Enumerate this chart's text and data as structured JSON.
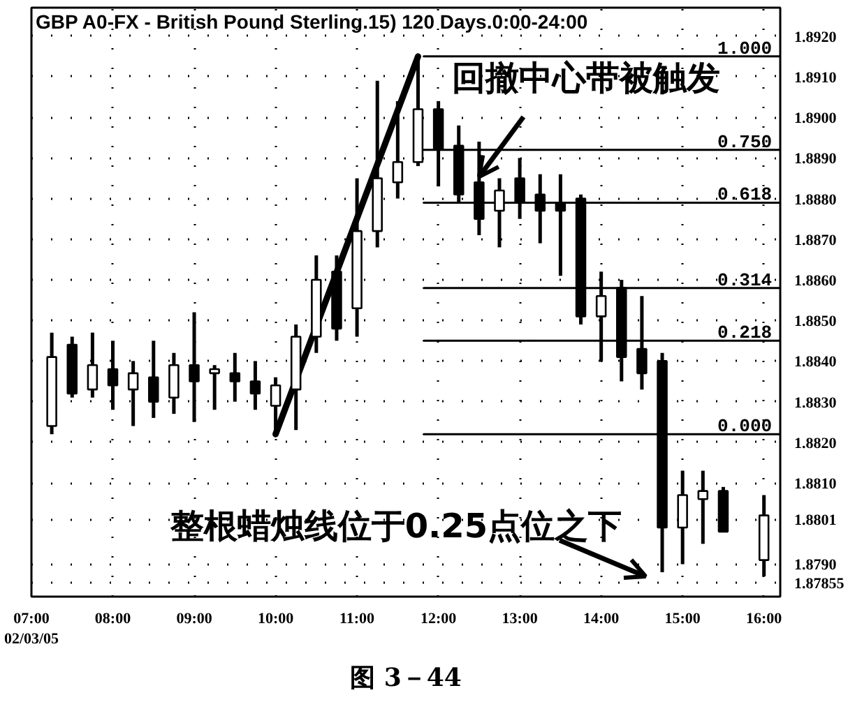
{
  "chart_data": {
    "type": "candlestick",
    "title": "GBP A0-FX - British Pound Sterling.15) 120 Days.0:00-24:00",
    "color": "#000000",
    "x": [
      7.25,
      7.5,
      7.75,
      8.0,
      8.25,
      8.5,
      8.75,
      9.0,
      9.25,
      9.5,
      9.75,
      10.0,
      10.25,
      10.5,
      10.75,
      11.0,
      11.25,
      11.5,
      11.75,
      12.0,
      12.25,
      12.5,
      12.75,
      13.0,
      13.25,
      13.5,
      13.75,
      14.0,
      14.25,
      14.5,
      14.75,
      15.0,
      15.25,
      15.5,
      16.0
    ],
    "ohlc": [
      [
        1.8824,
        1.8847,
        1.8822,
        1.8841
      ],
      [
        1.8844,
        1.8846,
        1.8831,
        1.8832
      ],
      [
        1.8833,
        1.8847,
        1.8831,
        1.8839
      ],
      [
        1.8838,
        1.8845,
        1.8828,
        1.8834
      ],
      [
        1.8833,
        1.884,
        1.8824,
        1.8837
      ],
      [
        1.8836,
        1.8845,
        1.8826,
        1.883
      ],
      [
        1.8831,
        1.8842,
        1.8827,
        1.8839
      ],
      [
        1.8839,
        1.8852,
        1.8825,
        1.8835
      ],
      [
        1.8837,
        1.8839,
        1.8828,
        1.8838
      ],
      [
        1.8837,
        1.8842,
        1.883,
        1.8835
      ],
      [
        1.8835,
        1.884,
        1.8828,
        1.8832
      ],
      [
        1.8829,
        1.8836,
        1.8822,
        1.8834
      ],
      [
        1.8833,
        1.8849,
        1.8823,
        1.8846
      ],
      [
        1.8846,
        1.8866,
        1.8842,
        1.886
      ],
      [
        1.8862,
        1.8866,
        1.8845,
        1.8848
      ],
      [
        1.8853,
        1.8885,
        1.8846,
        1.8872
      ],
      [
        1.8872,
        1.8909,
        1.8868,
        1.8885
      ],
      [
        1.8884,
        1.8904,
        1.888,
        1.8889
      ],
      [
        1.8889,
        1.8915,
        1.8888,
        1.8902
      ],
      [
        1.8902,
        1.8904,
        1.8883,
        1.8892
      ],
      [
        1.8893,
        1.8898,
        1.8879,
        1.8881
      ],
      [
        1.8884,
        1.8894,
        1.8871,
        1.8875
      ],
      [
        1.8877,
        1.8885,
        1.8868,
        1.8882
      ],
      [
        1.8885,
        1.889,
        1.8875,
        1.8879
      ],
      [
        1.8881,
        1.8886,
        1.8869,
        1.8877
      ],
      [
        1.8879,
        1.8886,
        1.8861,
        1.8877
      ],
      [
        1.888,
        1.8881,
        1.8849,
        1.8851
      ],
      [
        1.8851,
        1.8862,
        1.884,
        1.8856
      ],
      [
        1.8858,
        1.886,
        1.8835,
        1.8841
      ],
      [
        1.8843,
        1.8856,
        1.8833,
        1.8837
      ],
      [
        1.884,
        1.8842,
        1.8788,
        1.8799
      ],
      [
        1.8799,
        1.8813,
        1.879,
        1.8807
      ],
      [
        1.8806,
        1.8813,
        1.8795,
        1.8808
      ],
      [
        1.8808,
        1.8809,
        1.8798,
        1.8798
      ],
      [
        1.8791,
        1.8807,
        1.8787,
        1.8802
      ]
    ],
    "series": [
      {
        "type": "line",
        "x": [
          10.0,
          11.75
        ],
        "values": [
          1.8822,
          1.8915
        ],
        "color": "#000000"
      },
      {
        "type": "line",
        "name": "1.000",
        "x": [
          11.82,
          16.2
        ],
        "values": [
          1.8915,
          1.8915
        ],
        "color": "#000000"
      },
      {
        "type": "line",
        "name": "0.750",
        "x": [
          11.82,
          16.2
        ],
        "values": [
          1.8892,
          1.8892
        ],
        "color": "#000000"
      },
      {
        "type": "line",
        "name": "0.618",
        "x": [
          11.82,
          16.2
        ],
        "values": [
          1.8879,
          1.8879
        ],
        "color": "#000000"
      },
      {
        "type": "line",
        "name": "0.314",
        "x": [
          11.82,
          16.2
        ],
        "values": [
          1.8858,
          1.8858
        ],
        "color": "#000000"
      },
      {
        "type": "line",
        "name": "0.218",
        "x": [
          11.82,
          16.2
        ],
        "values": [
          1.8845,
          1.8845
        ],
        "color": "#000000"
      },
      {
        "type": "line",
        "name": "0.000",
        "x": [
          11.82,
          16.2
        ],
        "values": [
          1.8822,
          1.8822
        ],
        "color": "#000000"
      }
    ],
    "xlim": [
      7.0,
      16.2
    ],
    "xticks": [
      {
        "value": 7,
        "label": "07:00\n02/03/05"
      },
      {
        "value": 8,
        "label": "08:00"
      },
      {
        "value": 9,
        "label": "09:00"
      },
      {
        "value": 10,
        "label": "10:00"
      },
      {
        "value": 11,
        "label": "11:00"
      },
      {
        "value": 12,
        "label": "12:00"
      },
      {
        "value": 13,
        "label": "13:00"
      },
      {
        "value": 14,
        "label": "14:00"
      },
      {
        "value": 15,
        "label": "15:00"
      },
      {
        "value": 16,
        "label": "16:00"
      }
    ],
    "ylim": [
      1.8782,
      1.8927
    ],
    "yticks": [
      {
        "value": 1.892,
        "label": "1.8920"
      },
      {
        "value": 1.891,
        "label": "1.8910"
      },
      {
        "value": 1.89,
        "label": "1.8900"
      },
      {
        "value": 1.889,
        "label": "1.8890"
      },
      {
        "value": 1.888,
        "label": "1.8880"
      },
      {
        "value": 1.887,
        "label": "1.8870"
      },
      {
        "value": 1.886,
        "label": "1.8860"
      },
      {
        "value": 1.885,
        "label": "1.8850"
      },
      {
        "value": 1.884,
        "label": "1.8840"
      },
      {
        "value": 1.883,
        "label": "1.8830"
      },
      {
        "value": 1.882,
        "label": "1.8820"
      },
      {
        "value": 1.881,
        "label": "1.8810"
      },
      1.8801,
      {
        "value": 1.879,
        "label": "1.8790"
      },
      1.87855
    ],
    "grid": true,
    "annotations": [
      {
        "text": "回撤中心带被触发",
        "x": 12.5,
        "y": 1.8884
      },
      {
        "text": "整根蜡烛线位于0.25点位之下",
        "x": 14.75,
        "y": 1.8788
      },
      "图 3－44"
    ]
  }
}
